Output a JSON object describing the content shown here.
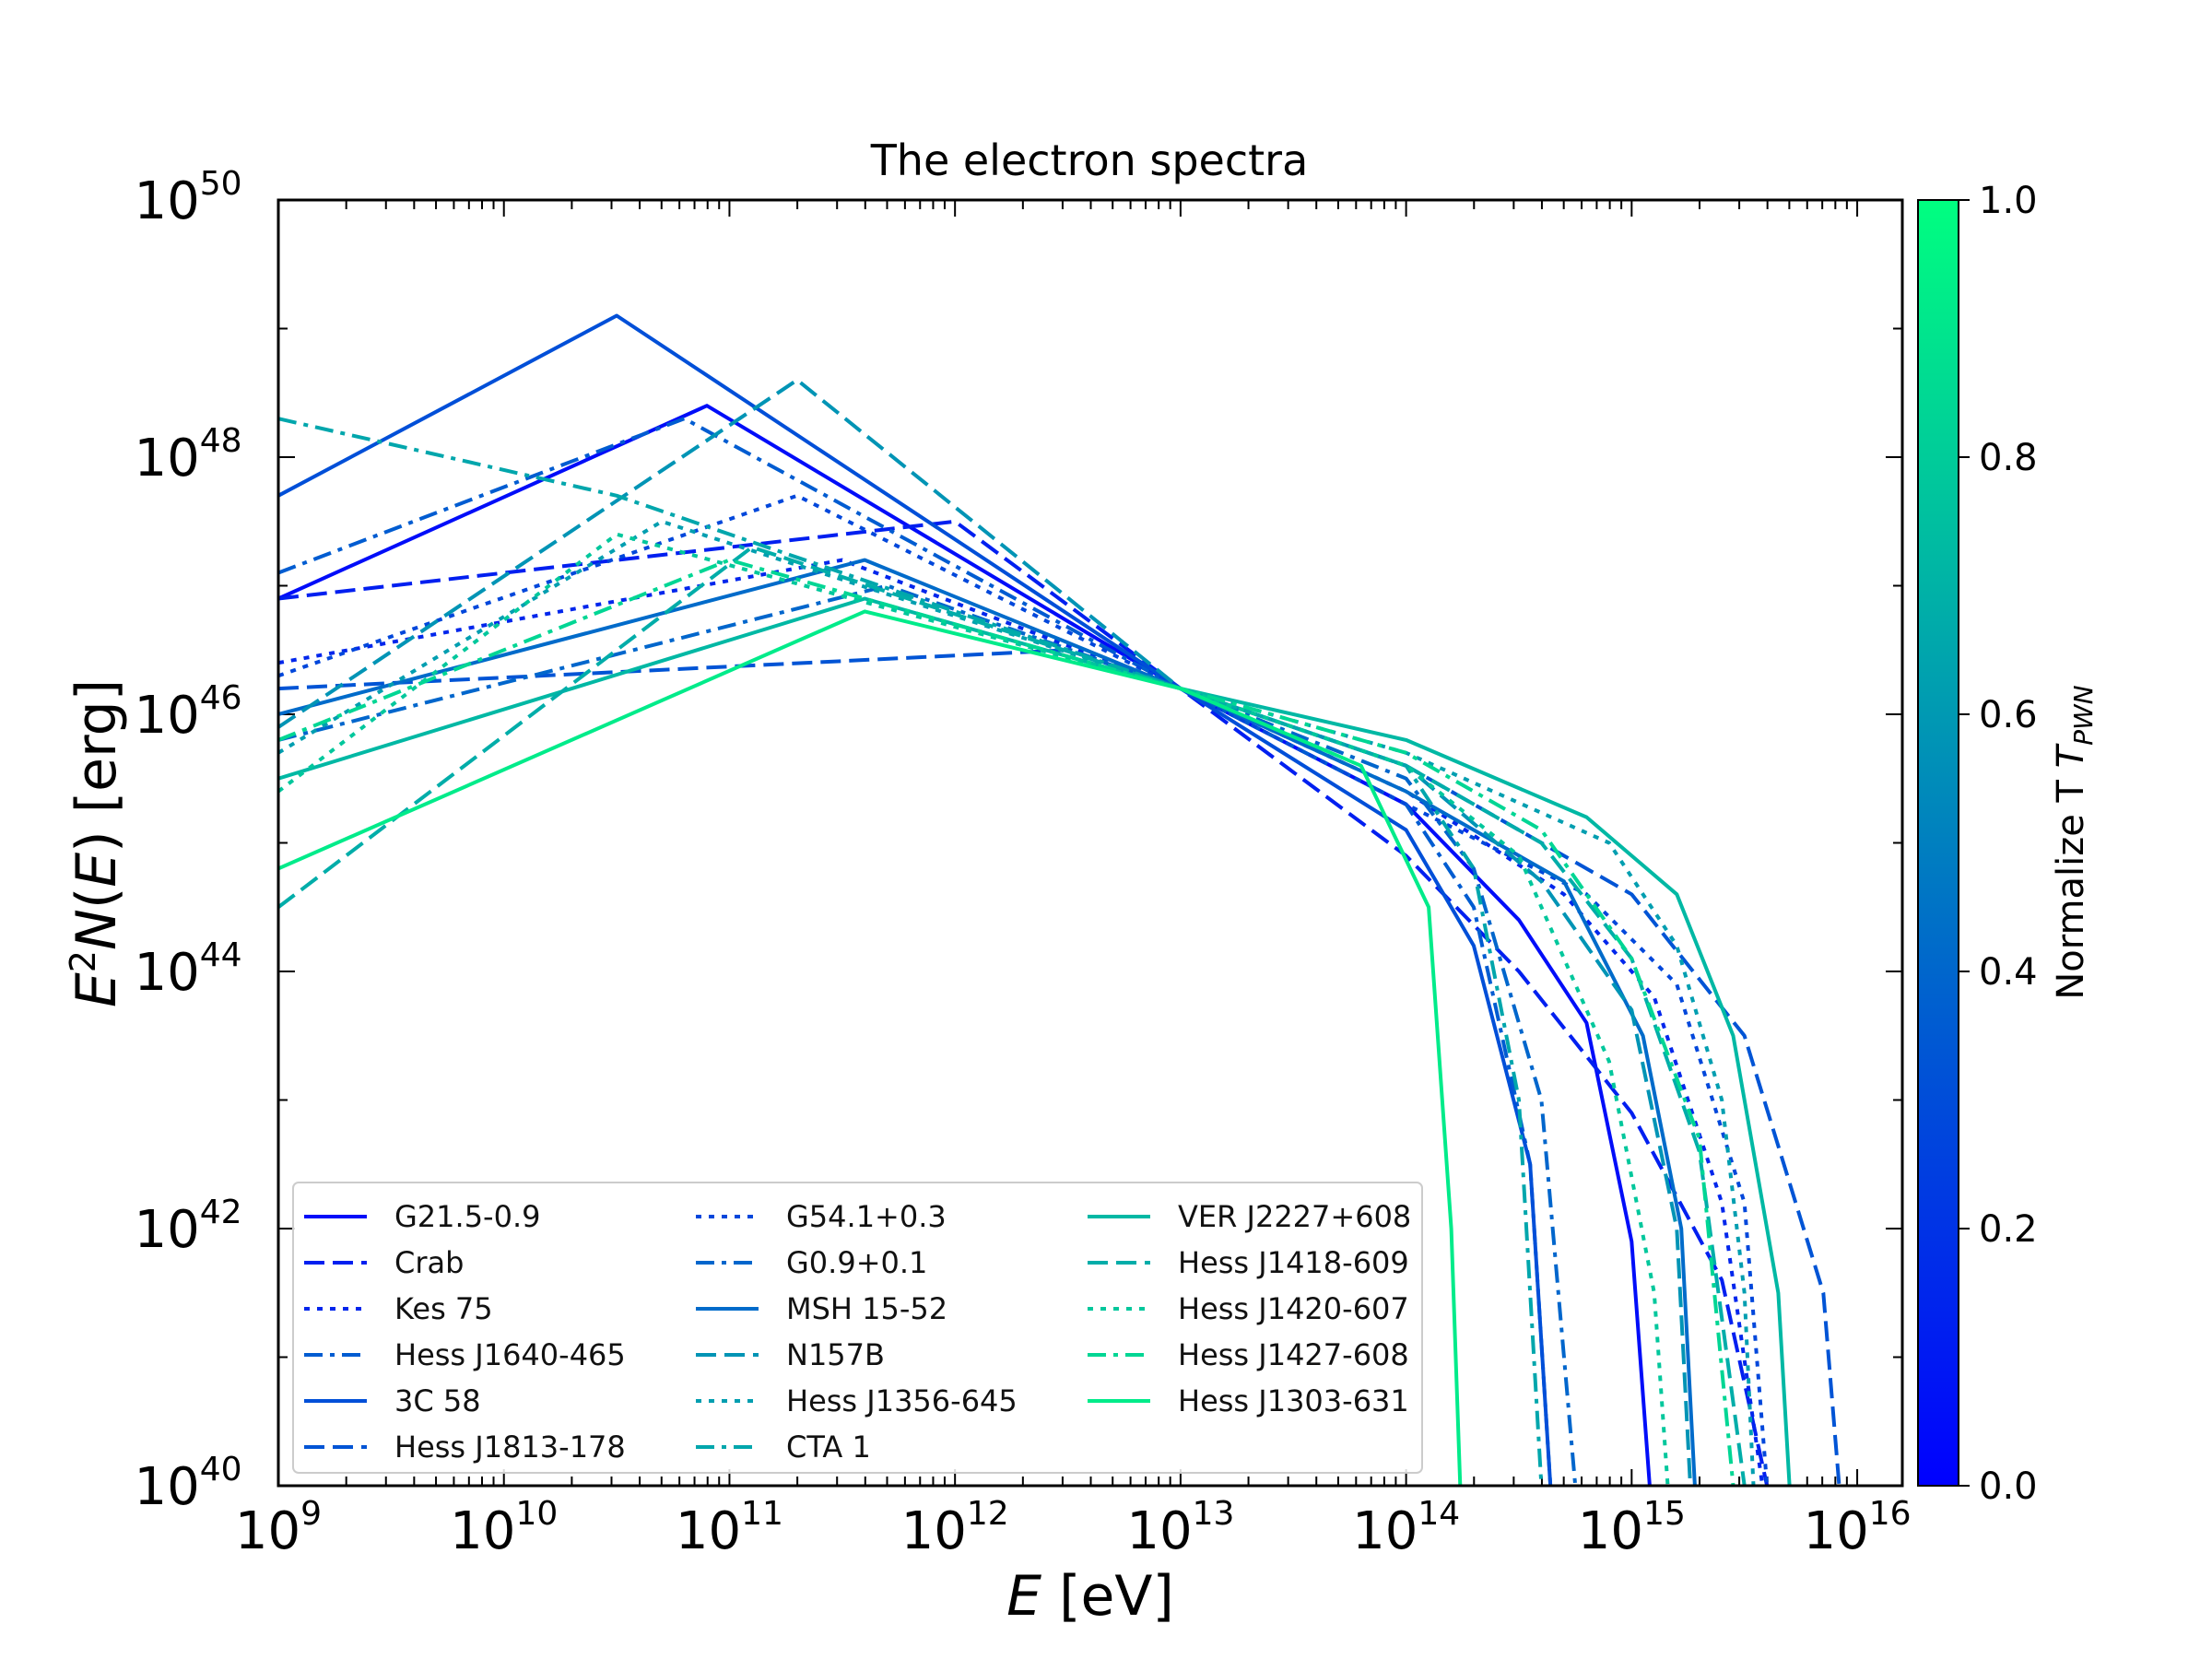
{
  "chart_data": {
    "type": "line",
    "title": "The electron spectra",
    "xlabel": "E [eV]",
    "ylabel": "E^2N(E) [erg]",
    "xscale": "log",
    "yscale": "log",
    "xlim_exp": [
      9,
      16.2
    ],
    "ylim_exp": [
      40,
      50
    ],
    "x_tick_exponents": [
      9,
      10,
      11,
      12,
      13,
      14,
      15,
      16
    ],
    "y_tick_exponents": [
      40,
      42,
      44,
      46,
      48,
      50
    ],
    "tick_base": "10",
    "legend_position": "lower-left",
    "colorbar": {
      "label": "Normalize T",
      "label_subscript": "PWN",
      "range": [
        0.0,
        1.0
      ],
      "ticks": [
        "0.0",
        "0.2",
        "0.4",
        "0.6",
        "0.8",
        "1.0"
      ],
      "color_low": "#0000ff",
      "color_high": "#00ff80"
    },
    "series": [
      {
        "name": "G21.5-0.9",
        "style": "solid",
        "t": 0.05,
        "points": [
          [
            9,
            46.9
          ],
          [
            10.9,
            48.4
          ],
          [
            13,
            46.2
          ],
          [
            14,
            45.3
          ],
          [
            14.5,
            44.4
          ],
          [
            14.8,
            43.6
          ],
          [
            15.0,
            41.9
          ],
          [
            15.08,
            40.0
          ]
        ]
      },
      {
        "name": "Crab",
        "style": "dashed",
        "t": 0.12,
        "points": [
          [
            9,
            46.9
          ],
          [
            12,
            47.5
          ],
          [
            13,
            46.2
          ],
          [
            14,
            44.9
          ],
          [
            14.5,
            44.0
          ],
          [
            15,
            42.9
          ],
          [
            15.4,
            41.6
          ],
          [
            15.6,
            40.0
          ]
        ]
      },
      {
        "name": "Kes 75",
        "style": "dotted",
        "t": 0.15,
        "points": [
          [
            9,
            46.4
          ],
          [
            11.5,
            47.2
          ],
          [
            13,
            46.2
          ],
          [
            14,
            45.4
          ],
          [
            14.7,
            44.6
          ],
          [
            15.1,
            43.8
          ],
          [
            15.4,
            42.2
          ],
          [
            15.58,
            40.0
          ]
        ]
      },
      {
        "name": "Hess J1640-465",
        "style": "dashdot",
        "t": 0.36,
        "points": [
          [
            9,
            47.1
          ],
          [
            10.8,
            48.3
          ],
          [
            13,
            46.2
          ],
          [
            14,
            45.3
          ],
          [
            14.3,
            44.5
          ],
          [
            14.55,
            42.5
          ],
          [
            14.64,
            40.0
          ]
        ]
      },
      {
        "name": "3C 58",
        "style": "solid",
        "t": 0.31,
        "points": [
          [
            9,
            47.7
          ],
          [
            10.5,
            49.1
          ],
          [
            13,
            46.2
          ],
          [
            14,
            45.1
          ],
          [
            14.3,
            44.2
          ],
          [
            14.55,
            42.5
          ],
          [
            14.64,
            40.0
          ]
        ]
      },
      {
        "name": "Hess J1813-178",
        "style": "dashed",
        "t": 0.33,
        "points": [
          [
            9,
            46.2
          ],
          [
            12.5,
            46.5
          ],
          [
            13,
            46.2
          ],
          [
            14,
            45.6
          ],
          [
            15,
            44.6
          ],
          [
            15.5,
            43.5
          ],
          [
            15.85,
            41.5
          ],
          [
            15.92,
            40.0
          ]
        ]
      },
      {
        "name": "G54.1+0.3",
        "style": "dotted",
        "t": 0.28,
        "points": [
          [
            9,
            46.3
          ],
          [
            11.3,
            47.7
          ],
          [
            13,
            46.2
          ],
          [
            14,
            45.3
          ],
          [
            14.8,
            44.6
          ],
          [
            15.2,
            43.9
          ],
          [
            15.5,
            42.2
          ],
          [
            15.6,
            40.0
          ]
        ]
      },
      {
        "name": "G0.9+0.1",
        "style": "dashdot",
        "t": 0.4,
        "points": [
          [
            9,
            45.8
          ],
          [
            11.7,
            47.0
          ],
          [
            13,
            46.2
          ],
          [
            14,
            45.5
          ],
          [
            14.3,
            44.8
          ],
          [
            14.6,
            43.0
          ],
          [
            14.75,
            40.0
          ]
        ]
      },
      {
        "name": "MSH 15-52",
        "style": "solid",
        "t": 0.42,
        "points": [
          [
            9,
            46.0
          ],
          [
            11.6,
            47.2
          ],
          [
            13,
            46.2
          ],
          [
            14,
            45.4
          ],
          [
            14.7,
            44.7
          ],
          [
            15.05,
            43.5
          ],
          [
            15.22,
            42.0
          ],
          [
            15.28,
            40.0
          ]
        ]
      },
      {
        "name": "N157B",
        "style": "dashed",
        "t": 0.58,
        "points": [
          [
            9,
            45.9
          ],
          [
            11.3,
            48.6
          ],
          [
            13,
            46.2
          ],
          [
            14,
            45.6
          ],
          [
            14.6,
            44.7
          ],
          [
            15.0,
            43.7
          ],
          [
            15.2,
            42.0
          ],
          [
            15.26,
            40.0
          ]
        ]
      },
      {
        "name": "Hess J1356-645",
        "style": "dotted",
        "t": 0.62,
        "points": [
          [
            9,
            45.7
          ],
          [
            10.7,
            47.5
          ],
          [
            13,
            46.2
          ],
          [
            14,
            45.7
          ],
          [
            14.9,
            45.0
          ],
          [
            15.2,
            44.2
          ],
          [
            15.4,
            43.0
          ],
          [
            15.5,
            41.5
          ],
          [
            15.54,
            40.0
          ]
        ]
      },
      {
        "name": "CTA 1",
        "style": "dashdot",
        "t": 0.65,
        "points": [
          [
            9,
            48.3
          ],
          [
            10.5,
            47.7
          ],
          [
            13,
            46.2
          ],
          [
            14,
            45.6
          ],
          [
            14.3,
            44.8
          ],
          [
            14.5,
            43.0
          ],
          [
            14.6,
            40.0
          ]
        ]
      },
      {
        "name": "VER J2227+608",
        "style": "solid",
        "t": 0.72,
        "points": [
          [
            9,
            45.5
          ],
          [
            11.6,
            46.9
          ],
          [
            13,
            46.2
          ],
          [
            14,
            45.8
          ],
          [
            14.8,
            45.2
          ],
          [
            15.2,
            44.6
          ],
          [
            15.45,
            43.5
          ],
          [
            15.65,
            41.5
          ],
          [
            15.7,
            40.0
          ]
        ]
      },
      {
        "name": "Hess J1418-609",
        "style": "dashed",
        "t": 0.68,
        "points": [
          [
            9,
            44.5
          ],
          [
            11.1,
            47.3
          ],
          [
            13,
            46.2
          ],
          [
            14,
            45.6
          ],
          [
            14.6,
            45.0
          ],
          [
            15.0,
            44.1
          ],
          [
            15.3,
            42.6
          ],
          [
            15.5,
            40.0
          ]
        ]
      },
      {
        "name": "Hess J1420-607",
        "style": "dotted",
        "t": 0.78,
        "points": [
          [
            9,
            45.4
          ],
          [
            10.5,
            47.4
          ],
          [
            13,
            46.2
          ],
          [
            14,
            45.6
          ],
          [
            14.5,
            44.9
          ],
          [
            14.9,
            43.3
          ],
          [
            15.1,
            41.5
          ],
          [
            15.16,
            40.0
          ]
        ]
      },
      {
        "name": "Hess J1427-608",
        "style": "dashdot",
        "t": 0.84,
        "points": [
          [
            9,
            45.8
          ],
          [
            11,
            47.2
          ],
          [
            13,
            46.2
          ],
          [
            14,
            45.7
          ],
          [
            14.6,
            45.1
          ],
          [
            15.0,
            44.1
          ],
          [
            15.3,
            42.7
          ],
          [
            15.45,
            40.0
          ]
        ]
      },
      {
        "name": "Hess J1303-631",
        "style": "solid",
        "t": 0.92,
        "points": [
          [
            9,
            44.8
          ],
          [
            11.6,
            46.8
          ],
          [
            13,
            46.2
          ],
          [
            13.8,
            45.6
          ],
          [
            14.1,
            44.5
          ],
          [
            14.2,
            42.0
          ],
          [
            14.24,
            40.0
          ]
        ]
      }
    ]
  }
}
